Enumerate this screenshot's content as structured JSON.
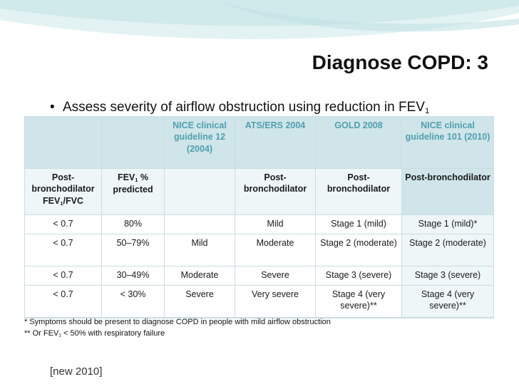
{
  "slide": {
    "title": "Diagnose COPD: 3",
    "bullet_main": "Assess severity of airflow obstruction using reduction in FEV",
    "bullet_sub": "1",
    "footer_tag": "[new 2010]"
  },
  "table": {
    "header": [
      "",
      "",
      "NICE clinical guideline 12 (2004)",
      "ATS/ERS 2004",
      "GOLD 2008",
      "NICE clinical guideline 101 (2010)"
    ],
    "subheader": {
      "col1": {
        "pre": "Post-bronchodilator FEV",
        "sub": "1",
        "post": "/FVC"
      },
      "col2": {
        "pre": "FEV",
        "sub": "1",
        "post": " % predicted"
      },
      "col3": "",
      "col4": "Post-bronchodilator",
      "col5": "Post-bronchodilator",
      "col6": "Post-bronchodilator"
    },
    "rows": [
      [
        "< 0.7",
        "80%",
        "",
        "Mild",
        "Stage 1 (mild)",
        "Stage 1 (mild)*"
      ],
      [
        "< 0.7",
        "50–79%",
        "Mild",
        "Moderate",
        "Stage 2 (moderate)",
        "Stage 2 (moderate)"
      ],
      [
        "< 0.7",
        "30–49%",
        "Moderate",
        "Severe",
        "Stage 3 (severe)",
        "Stage 3 (severe)"
      ],
      [
        "< 0.7",
        "< 30%",
        "Severe",
        "Very severe",
        "Stage 4 (very severe)**",
        "Stage 4 (very severe)**"
      ]
    ]
  },
  "notes": {
    "line1": "* Symptoms should be present to diagnose COPD in people with mild airflow obstruction",
    "line2_pre": "** Or FEV",
    "line2_sub": "1",
    "line2_post": " < 50% with respiratory failure"
  },
  "colors": {
    "header_bg": "#cfe5e9",
    "header_text": "#4f9fae",
    "accent": "#d4ecee"
  }
}
